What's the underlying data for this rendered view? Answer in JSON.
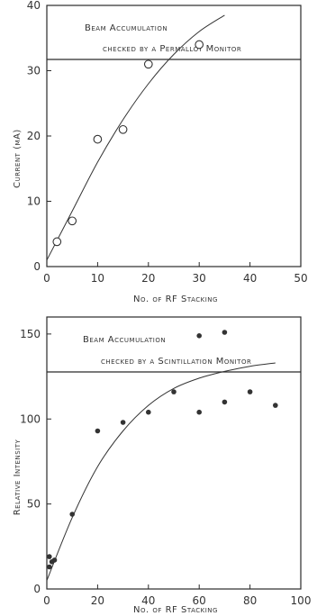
{
  "chart_data": [
    {
      "type": "scatter",
      "annotations": [
        "Beam Accumulation",
        "checked by a Permalloy Monitor"
      ],
      "xlabel": "No. of RF Stacking",
      "ylabel": "Current (μA)",
      "xlim": [
        0,
        50
      ],
      "ylim": [
        0,
        40
      ],
      "xticks": [
        "0",
        "10",
        "20",
        "30",
        "40",
        "50"
      ],
      "yticks": [
        "0",
        "10",
        "20",
        "30",
        "40"
      ],
      "grid": false,
      "marker": "open-circle",
      "series": [
        {
          "x": [
            2,
            5,
            10,
            15,
            20,
            30
          ],
          "y": [
            3.8,
            7,
            19.5,
            21,
            31,
            34
          ]
        }
      ],
      "fit_curve": {
        "x": [
          0,
          5,
          10,
          15,
          20,
          25,
          30,
          35
        ],
        "y": [
          1,
          8.5,
          16,
          22.5,
          28,
          32.5,
          36,
          38.5
        ]
      }
    },
    {
      "type": "scatter",
      "annotations": [
        "Beam Accumulation",
        "checked by a Scintillation Monitor"
      ],
      "xlabel": "No. of RF Stacking",
      "ylabel": "Relative Intensity",
      "xlim": [
        0,
        100
      ],
      "ylim": [
        0,
        160
      ],
      "xticks": [
        "0",
        "20",
        "40",
        "60",
        "80",
        "100"
      ],
      "yticks": [
        "0",
        "50",
        "100",
        "150"
      ],
      "grid": false,
      "marker": "filled-circle",
      "series": [
        {
          "x": [
            1,
            1,
            2,
            3,
            10,
            20,
            30,
            40,
            50,
            60,
            60,
            70,
            70,
            80,
            90
          ],
          "y": [
            13,
            19,
            16,
            17,
            44,
            93,
            98,
            104,
            116,
            149,
            104,
            151,
            110,
            116,
            108
          ]
        }
      ],
      "fit_curve": {
        "x": [
          0,
          10,
          20,
          30,
          40,
          50,
          60,
          70,
          80,
          90
        ],
        "y": [
          5,
          42,
          72,
          93,
          108,
          118,
          124,
          128,
          131,
          133
        ]
      }
    }
  ]
}
